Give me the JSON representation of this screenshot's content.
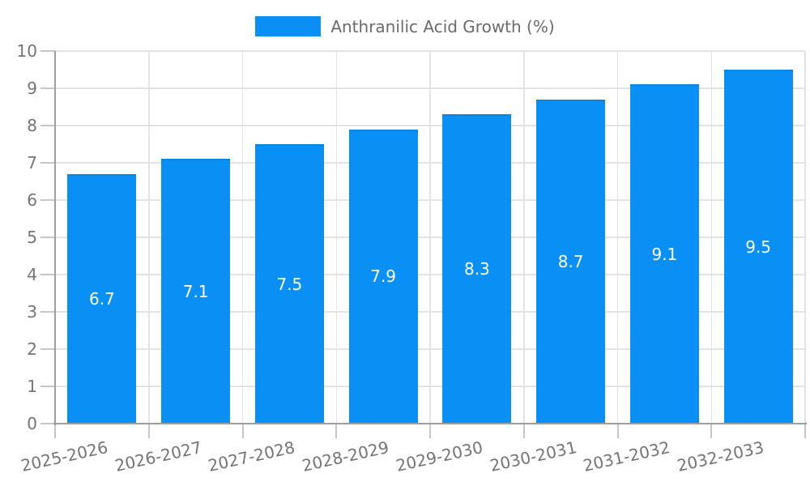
{
  "legend": {
    "label": "Anthranilic Acid Growth (%)"
  },
  "chart_data": {
    "type": "bar",
    "title": "Anthranilic Acid Growth (%)",
    "categories": [
      "2025-2026",
      "2026-2027",
      "2027-2028",
      "2028-2029",
      "2029-2030",
      "2030-2031",
      "2031-2032",
      "2032-2033"
    ],
    "values": [
      6.7,
      7.1,
      7.5,
      7.9,
      8.3,
      8.7,
      9.1,
      9.5
    ],
    "value_labels": [
      "6.7",
      "7.1",
      "7.5",
      "7.9",
      "8.3",
      "8.7",
      "9.1",
      "9.5"
    ],
    "xlabel": "",
    "ylabel": "",
    "ylim": [
      0,
      10
    ],
    "yticks": [
      0,
      1,
      2,
      3,
      4,
      5,
      6,
      7,
      8,
      9,
      10
    ],
    "grid": true,
    "legend_position": "top-center",
    "colors": {
      "bar": "#0a8ff4",
      "axis": "#9e9e9e",
      "grid": "#e3e3e3",
      "tick": "#c6c6c6",
      "tick_text": "#757575",
      "title_text": "#6b6b6b",
      "value_label": "#ffffff"
    }
  }
}
